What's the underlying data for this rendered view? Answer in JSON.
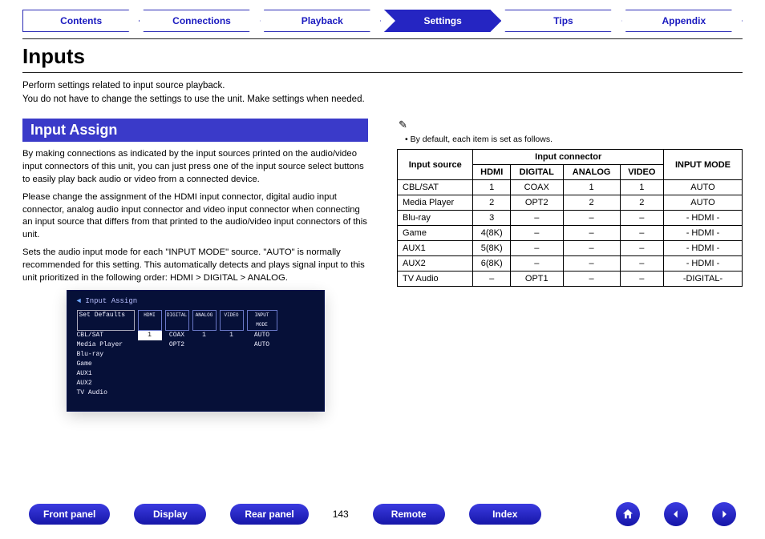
{
  "tabs": {
    "items": [
      "Contents",
      "Connections",
      "Playback",
      "Settings",
      "Tips",
      "Appendix"
    ],
    "active_index": 3,
    "active_bg": "#2525c2",
    "inactive_text": "#1a1abf"
  },
  "page_title": "Inputs",
  "intro_lines": [
    "Perform settings related to input source playback.",
    "You do not have to change the settings to use the unit. Make settings when needed."
  ],
  "section": {
    "header": "Input Assign",
    "header_bg": "#3a3ac9",
    "paragraphs": [
      "By making connections as indicated by the input sources printed on the audio/video input connectors of this unit, you can just press one of the input source select buttons to easily play back audio or video from a connected device.",
      "Please change the assignment of the HDMI input connector, digital audio input connector, analog audio input connector and video input connector when connecting an input source that differs from that printed to the audio/video input connectors of this unit.",
      "Sets the audio input mode for each \"INPUT MODE\" source. \"AUTO\" is normally recommended for this setting. This automatically detects and plays signal input to this unit prioritized in the following order: HDMI > DIGITAL > ANALOG."
    ]
  },
  "osd": {
    "title": "Input Assign",
    "set_defaults": "Set Defaults",
    "headers": [
      "HDMI",
      "DIGITAL",
      "ANALOG",
      "VIDEO",
      "INPUT MODE"
    ],
    "rows": [
      {
        "label": "CBL/SAT",
        "cells": [
          "1",
          "COAX",
          "1",
          "1",
          "AUTO"
        ],
        "selected_col": 0
      },
      {
        "label": "Media Player",
        "cells": [
          "",
          "OPT2",
          "",
          "",
          "AUTO"
        ]
      },
      {
        "label": "Blu-ray",
        "cells": [
          "",
          "",
          "",
          "",
          ""
        ]
      },
      {
        "label": "Game",
        "cells": [
          "",
          "",
          "",
          "",
          ""
        ]
      },
      {
        "label": "AUX1",
        "cells": [
          "",
          "",
          "",
          "",
          ""
        ]
      },
      {
        "label": "AUX2",
        "cells": [
          "",
          "",
          "",
          "",
          ""
        ]
      },
      {
        "label": "TV Audio",
        "cells": [
          "",
          "",
          "",
          "",
          ""
        ]
      }
    ],
    "bg": "#061038"
  },
  "right": {
    "pencil_icon": "✎",
    "note": "By default, each item is set as follows.",
    "table": {
      "group_header": "Input connector",
      "corner": "Input source",
      "mode_header": "INPUT MODE",
      "sub_headers": [
        "HDMI",
        "DIGITAL",
        "ANALOG",
        "VIDEO"
      ],
      "rows": [
        {
          "src": "CBL/SAT",
          "cells": [
            "1",
            "COAX",
            "1",
            "1",
            "AUTO"
          ]
        },
        {
          "src": "Media Player",
          "cells": [
            "2",
            "OPT2",
            "2",
            "2",
            "AUTO"
          ]
        },
        {
          "src": "Blu-ray",
          "cells": [
            "3",
            "–",
            "–",
            "–",
            "- HDMI -"
          ]
        },
        {
          "src": "Game",
          "cells": [
            "4(8K)",
            "–",
            "–",
            "–",
            "- HDMI -"
          ]
        },
        {
          "src": "AUX1",
          "cells": [
            "5(8K)",
            "–",
            "–",
            "–",
            "- HDMI -"
          ]
        },
        {
          "src": "AUX2",
          "cells": [
            "6(8K)",
            "–",
            "–",
            "–",
            "- HDMI -"
          ]
        },
        {
          "src": "TV Audio",
          "cells": [
            "–",
            "OPT1",
            "–",
            "–",
            "-DIGITAL-"
          ]
        }
      ]
    }
  },
  "bottom_nav": {
    "buttons": [
      "Front panel",
      "Display",
      "Rear panel"
    ],
    "page_number": "143",
    "buttons_right": [
      "Remote",
      "Index"
    ],
    "pill_bg": "#2222c4"
  }
}
